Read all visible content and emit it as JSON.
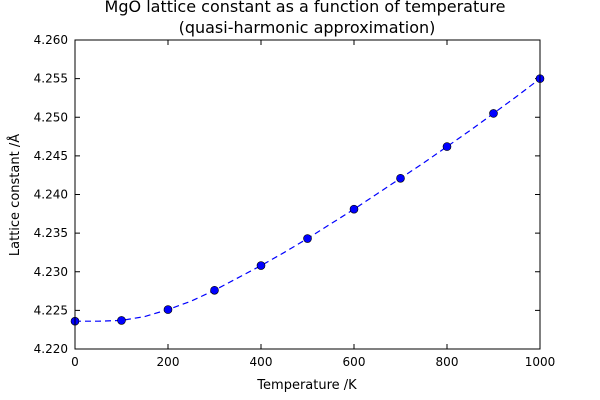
{
  "chart_data": {
    "type": "scatter",
    "title": [
      "MgO lattice constant as a function of temperature",
      "(quasi-harmonic approximation)"
    ],
    "xlabel": "Temperature /K",
    "ylabel": "Lattice constant /Å",
    "xlim": [
      0,
      1000
    ],
    "ylim": [
      4.22,
      4.26
    ],
    "xticks": [
      0,
      200,
      400,
      600,
      800,
      1000
    ],
    "xtick_labels": [
      "0",
      "200",
      "400",
      "600",
      "800",
      "1000"
    ],
    "yticks": [
      4.22,
      4.225,
      4.23,
      4.235,
      4.24,
      4.245,
      4.25,
      4.255,
      4.26
    ],
    "ytick_labels": [
      "4.220",
      "4.225",
      "4.230",
      "4.235",
      "4.240",
      "4.245",
      "4.250",
      "4.255",
      "4.260"
    ],
    "grid": false,
    "legend": false,
    "series": [
      {
        "style": "markers",
        "color": "#0000ff",
        "x": [
          0,
          100,
          200,
          300,
          400,
          500,
          600,
          700,
          800,
          900,
          1000
        ],
        "y": [
          4.2236,
          4.2237,
          4.2251,
          4.2276,
          4.2308,
          4.2343,
          4.2381,
          4.2421,
          4.2462,
          4.2505,
          4.255
        ]
      },
      {
        "style": "dashed-line",
        "color": "#0000ff",
        "x": [
          0,
          50,
          100,
          150,
          200,
          250,
          300,
          350,
          400,
          450,
          500,
          550,
          600,
          650,
          700,
          750,
          800,
          850,
          900,
          950,
          1000
        ],
        "y": [
          4.2236,
          4.2236,
          4.2237,
          4.2242,
          4.2251,
          4.2262,
          4.2276,
          4.2292,
          4.2308,
          4.2325,
          4.2343,
          4.2362,
          4.2381,
          4.2401,
          4.2421,
          4.2441,
          4.2462,
          4.2483,
          4.2505,
          4.2527,
          4.255
        ]
      }
    ]
  }
}
